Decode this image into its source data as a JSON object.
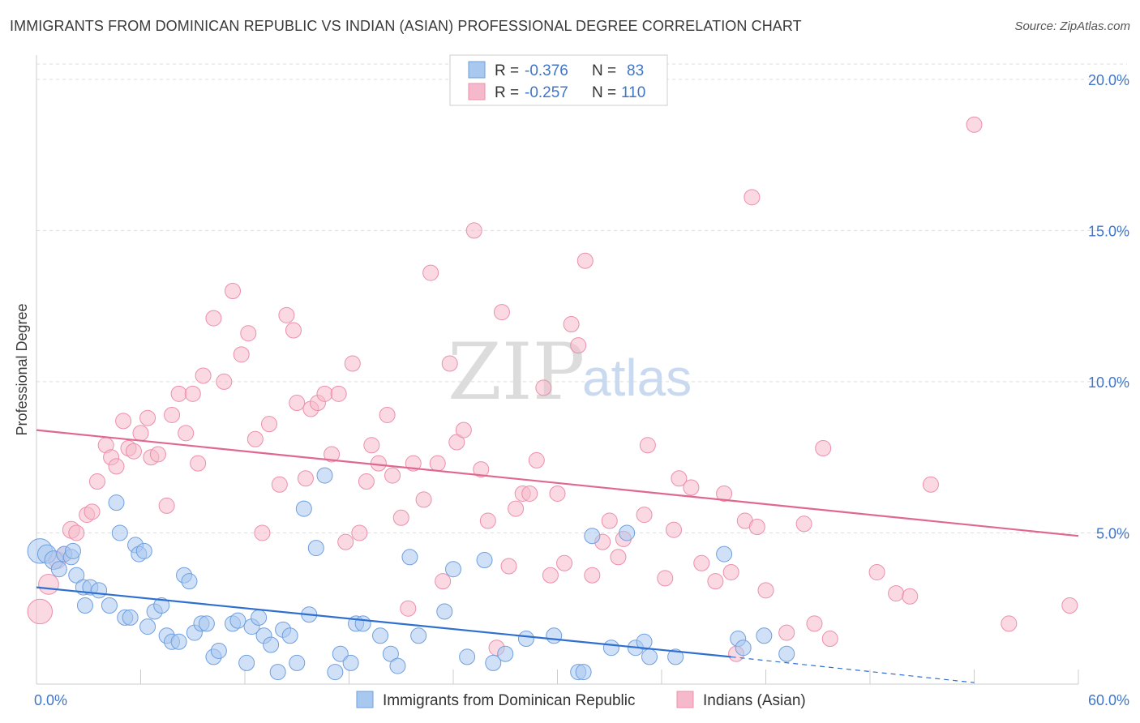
{
  "header": {
    "title": "IMMIGRANTS FROM DOMINICAN REPUBLIC VS INDIAN (ASIAN) PROFESSIONAL DEGREE CORRELATION CHART",
    "source": "Source: ZipAtlas.com"
  },
  "watermark": {
    "zip": "ZIP",
    "atlas": "atlas"
  },
  "legend": {
    "rows": [
      {
        "r_label": "R =",
        "r_value": "-0.376",
        "n_label": "N =",
        "n_value": "83"
      },
      {
        "r_label": "R =",
        "r_value": "-0.257",
        "n_label": "N =",
        "n_value": "110"
      }
    ]
  },
  "colors": {
    "blue_fill": "#a9c8f0",
    "blue_stroke": "#6f9fde",
    "blue_line": "#2f6fd0",
    "pink_fill": "#f6b9cb",
    "pink_stroke": "#ec8fab",
    "pink_line": "#e06890",
    "grid": "#dddddd",
    "axis_label": "#3f76c9"
  },
  "chart_data": {
    "type": "scatter",
    "title": "IMMIGRANTS FROM DOMINICAN REPUBLIC VS INDIAN (ASIAN) PROFESSIONAL DEGREE CORRELATION CHART",
    "xlabel": "",
    "ylabel": "Professional Degree",
    "xlim": [
      0,
      60
    ],
    "ylim": [
      0,
      20.8
    ],
    "x_tick_labels": [
      "0.0%",
      "60.0%"
    ],
    "y_ticks": [
      5,
      10,
      15,
      20
    ],
    "y_tick_labels": [
      "5.0%",
      "10.0%",
      "15.0%",
      "20.0%"
    ],
    "series": [
      {
        "name": "Immigrants from Dominican Republic",
        "color": "blue",
        "trend": {
          "x0": 0,
          "y0": 3.2,
          "x1": 40,
          "y1": 0.9,
          "dash_to_x": 54,
          "dash_to_y": 0.05
        },
        "points": [
          [
            0.2,
            4.4,
            1.6
          ],
          [
            0.6,
            4.3,
            1.2
          ],
          [
            1.0,
            4.1,
            1.2
          ],
          [
            1.3,
            3.8,
            1.0
          ],
          [
            1.6,
            4.3,
            1.0
          ],
          [
            2.0,
            4.2,
            1.0
          ],
          [
            2.1,
            4.4,
            1.0
          ],
          [
            2.3,
            3.6,
            1.0
          ],
          [
            2.7,
            3.2,
            1.0
          ],
          [
            2.8,
            2.6,
            1.0
          ],
          [
            3.1,
            3.2,
            1.0
          ],
          [
            3.6,
            3.1,
            1.0
          ],
          [
            4.2,
            2.6,
            1.0
          ],
          [
            4.6,
            6.0,
            1.0
          ],
          [
            4.8,
            5.0,
            1.0
          ],
          [
            5.1,
            2.2,
            1.0
          ],
          [
            5.4,
            2.2,
            1.0
          ],
          [
            5.7,
            4.6,
            1.0
          ],
          [
            5.9,
            4.3,
            1.0
          ],
          [
            6.2,
            4.4,
            1.0
          ],
          [
            6.4,
            1.9,
            1.0
          ],
          [
            6.8,
            2.4,
            1.0
          ],
          [
            7.2,
            2.6,
            1.0
          ],
          [
            7.5,
            1.6,
            1.0
          ],
          [
            7.8,
            1.4,
            1.0
          ],
          [
            8.2,
            1.4,
            1.0
          ],
          [
            8.5,
            3.6,
            1.0
          ],
          [
            8.8,
            3.4,
            1.0
          ],
          [
            9.1,
            1.7,
            1.0
          ],
          [
            9.5,
            2.0,
            1.0
          ],
          [
            9.8,
            2.0,
            1.0
          ],
          [
            10.2,
            0.9,
            1.0
          ],
          [
            10.5,
            1.1,
            1.0
          ],
          [
            11.3,
            2.0,
            1.0
          ],
          [
            11.6,
            2.1,
            1.0
          ],
          [
            12.1,
            0.7,
            1.0
          ],
          [
            12.4,
            1.9,
            1.0
          ],
          [
            12.8,
            2.2,
            1.0
          ],
          [
            13.1,
            1.6,
            1.0
          ],
          [
            13.5,
            1.3,
            1.0
          ],
          [
            13.9,
            0.4,
            1.0
          ],
          [
            14.2,
            1.8,
            1.0
          ],
          [
            14.6,
            1.6,
            1.0
          ],
          [
            15.0,
            0.7,
            1.0
          ],
          [
            15.4,
            5.8,
            1.0
          ],
          [
            15.7,
            2.3,
            1.0
          ],
          [
            16.1,
            4.5,
            1.0
          ],
          [
            16.6,
            6.9,
            1.0
          ],
          [
            17.2,
            0.4,
            1.0
          ],
          [
            17.5,
            1.0,
            1.0
          ],
          [
            18.1,
            0.7,
            1.0
          ],
          [
            18.4,
            2.0,
            1.0
          ],
          [
            18.8,
            2.0,
            1.0
          ],
          [
            19.8,
            1.6,
            1.0
          ],
          [
            20.4,
            1.0,
            1.0
          ],
          [
            20.8,
            0.6,
            1.0
          ],
          [
            21.5,
            4.2,
            1.0
          ],
          [
            22.0,
            1.6,
            1.0
          ],
          [
            23.5,
            2.4,
            1.0
          ],
          [
            24.0,
            3.8,
            1.0
          ],
          [
            24.8,
            0.9,
            1.0
          ],
          [
            25.8,
            4.1,
            1.0
          ],
          [
            26.3,
            0.7,
            1.0
          ],
          [
            27.0,
            1.0,
            1.0
          ],
          [
            28.2,
            1.5,
            1.0
          ],
          [
            29.8,
            1.6,
            1.0
          ],
          [
            31.2,
            0.4,
            1.0
          ],
          [
            31.5,
            0.4,
            1.0
          ],
          [
            32.0,
            4.9,
            1.0
          ],
          [
            33.1,
            1.2,
            1.0
          ],
          [
            34.0,
            5.0,
            1.0
          ],
          [
            34.5,
            1.2,
            1.0
          ],
          [
            35.0,
            1.4,
            1.0
          ],
          [
            35.3,
            0.9,
            1.0
          ],
          [
            36.8,
            0.9,
            1.0
          ],
          [
            39.6,
            4.3,
            1.0
          ],
          [
            40.4,
            1.5,
            1.0
          ],
          [
            40.7,
            1.2,
            1.0
          ],
          [
            41.9,
            1.6,
            1.0
          ],
          [
            43.2,
            1.0,
            1.0
          ]
        ]
      },
      {
        "name": "Indians (Asian)",
        "color": "pink",
        "trend": {
          "x0": 0,
          "y0": 8.4,
          "x1": 60,
          "y1": 4.9
        },
        "points": [
          [
            0.2,
            2.4,
            1.6
          ],
          [
            0.7,
            3.3,
            1.3
          ],
          [
            1.2,
            4.1,
            1.1
          ],
          [
            1.6,
            4.3,
            1.0
          ],
          [
            2.0,
            5.1,
            1.1
          ],
          [
            2.3,
            5.0,
            1.0
          ],
          [
            2.9,
            5.6,
            1.0
          ],
          [
            3.2,
            5.7,
            1.0
          ],
          [
            3.5,
            6.7,
            1.0
          ],
          [
            4.0,
            7.9,
            1.0
          ],
          [
            4.3,
            7.5,
            1.0
          ],
          [
            4.6,
            7.2,
            1.0
          ],
          [
            5.0,
            8.7,
            1.0
          ],
          [
            5.3,
            7.8,
            1.0
          ],
          [
            5.6,
            7.7,
            1.0
          ],
          [
            6.0,
            8.3,
            1.0
          ],
          [
            6.4,
            8.8,
            1.0
          ],
          [
            6.6,
            7.5,
            1.0
          ],
          [
            7.0,
            7.6,
            1.0
          ],
          [
            7.5,
            5.9,
            1.0
          ],
          [
            7.8,
            8.9,
            1.0
          ],
          [
            8.2,
            9.6,
            1.0
          ],
          [
            8.6,
            8.3,
            1.0
          ],
          [
            9.0,
            9.6,
            1.0
          ],
          [
            9.3,
            7.3,
            1.0
          ],
          [
            9.6,
            10.2,
            1.0
          ],
          [
            10.2,
            12.1,
            1.0
          ],
          [
            10.8,
            10.0,
            1.0
          ],
          [
            11.3,
            13.0,
            1.0
          ],
          [
            11.8,
            10.9,
            1.0
          ],
          [
            12.2,
            11.6,
            1.0
          ],
          [
            12.6,
            8.1,
            1.0
          ],
          [
            13.0,
            5.0,
            1.0
          ],
          [
            13.4,
            8.6,
            1.0
          ],
          [
            14.0,
            6.6,
            1.0
          ],
          [
            14.4,
            12.2,
            1.0
          ],
          [
            14.8,
            11.7,
            1.0
          ],
          [
            15.0,
            9.3,
            1.0
          ],
          [
            15.5,
            6.8,
            1.0
          ],
          [
            15.8,
            9.1,
            1.0
          ],
          [
            16.2,
            9.3,
            1.0
          ],
          [
            16.6,
            9.6,
            1.0
          ],
          [
            17.0,
            7.6,
            1.0
          ],
          [
            17.4,
            9.6,
            1.0
          ],
          [
            17.8,
            4.7,
            1.0
          ],
          [
            18.2,
            10.6,
            1.0
          ],
          [
            18.6,
            5.0,
            1.0
          ],
          [
            19.0,
            6.7,
            1.0
          ],
          [
            19.3,
            7.9,
            1.0
          ],
          [
            19.7,
            7.3,
            1.0
          ],
          [
            20.2,
            8.9,
            1.0
          ],
          [
            20.5,
            6.9,
            1.0
          ],
          [
            21.0,
            5.5,
            1.0
          ],
          [
            21.4,
            2.5,
            1.0
          ],
          [
            21.7,
            7.3,
            1.0
          ],
          [
            22.3,
            6.1,
            1.0
          ],
          [
            22.7,
            13.6,
            1.0
          ],
          [
            23.1,
            7.3,
            1.0
          ],
          [
            23.4,
            3.4,
            1.0
          ],
          [
            23.8,
            10.6,
            1.0
          ],
          [
            24.2,
            8.0,
            1.0
          ],
          [
            24.6,
            8.4,
            1.0
          ],
          [
            25.2,
            15.0,
            1.0
          ],
          [
            25.6,
            7.1,
            1.0
          ],
          [
            26.0,
            5.4,
            1.0
          ],
          [
            26.5,
            1.2,
            1.0
          ],
          [
            26.8,
            12.3,
            1.0
          ],
          [
            27.2,
            3.9,
            1.0
          ],
          [
            27.6,
            5.8,
            1.0
          ],
          [
            28.0,
            6.3,
            1.0
          ],
          [
            28.4,
            6.3,
            1.0
          ],
          [
            28.8,
            7.4,
            1.0
          ],
          [
            29.2,
            9.8,
            1.0
          ],
          [
            29.6,
            3.6,
            1.0
          ],
          [
            30.0,
            6.3,
            1.0
          ],
          [
            30.4,
            4.0,
            1.0
          ],
          [
            30.8,
            11.9,
            1.0
          ],
          [
            31.2,
            11.2,
            1.0
          ],
          [
            31.6,
            14.0,
            1.0
          ],
          [
            32.0,
            3.6,
            1.0
          ],
          [
            32.6,
            4.7,
            1.0
          ],
          [
            33.0,
            5.4,
            1.0
          ],
          [
            33.5,
            4.2,
            1.0
          ],
          [
            33.8,
            4.8,
            1.0
          ],
          [
            35.0,
            5.6,
            1.0
          ],
          [
            35.2,
            7.9,
            1.0
          ],
          [
            36.2,
            3.5,
            1.0
          ],
          [
            36.7,
            5.1,
            1.0
          ],
          [
            37.0,
            6.8,
            1.0
          ],
          [
            37.7,
            6.5,
            1.0
          ],
          [
            38.3,
            4.0,
            1.0
          ],
          [
            39.1,
            3.4,
            1.0
          ],
          [
            39.6,
            6.3,
            1.0
          ],
          [
            40.0,
            3.7,
            1.0
          ],
          [
            40.3,
            1.0,
            1.0
          ],
          [
            40.8,
            5.4,
            1.0
          ],
          [
            41.2,
            16.1,
            1.0
          ],
          [
            41.5,
            5.2,
            1.0
          ],
          [
            42.0,
            3.1,
            1.0
          ],
          [
            43.2,
            1.7,
            1.0
          ],
          [
            44.2,
            5.3,
            1.0
          ],
          [
            44.8,
            2.0,
            1.0
          ],
          [
            45.3,
            7.8,
            1.0
          ],
          [
            45.7,
            1.5,
            1.0
          ],
          [
            48.4,
            3.7,
            1.0
          ],
          [
            49.5,
            3.0,
            1.0
          ],
          [
            50.3,
            2.9,
            1.0
          ],
          [
            51.5,
            6.6,
            1.0
          ],
          [
            54.0,
            18.5,
            1.0
          ],
          [
            56.0,
            2.0,
            1.0
          ],
          [
            59.5,
            2.6,
            1.0
          ]
        ]
      }
    ]
  },
  "bottom_legend": {
    "items": [
      {
        "label": "Immigrants from Dominican Republic"
      },
      {
        "label": "Indians (Asian)"
      }
    ]
  }
}
